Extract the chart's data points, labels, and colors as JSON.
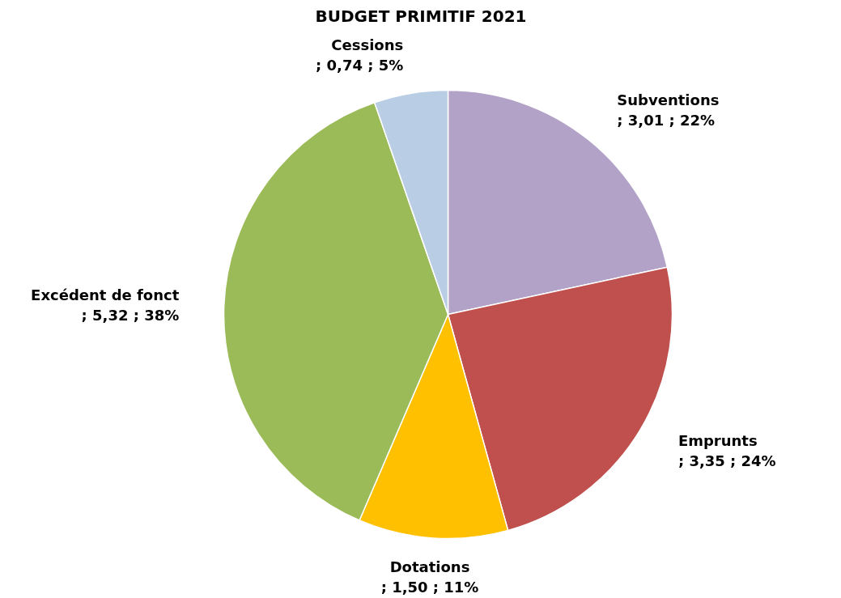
{
  "chart_data": {
    "type": "pie",
    "title": "BUDGET PRIMITIF 2021",
    "categories": [
      "Subventions",
      "Emprunts",
      "Dotations",
      "Excédent de fonct",
      "Cessions"
    ],
    "values": [
      3.01,
      3.35,
      1.5,
      5.32,
      0.74
    ],
    "colors": [
      "#b3a2c7",
      "#c0504d",
      "#ffc000",
      "#9bbb59",
      "#b9cde5"
    ],
    "value_labels": [
      "; 3,01 ; 22%",
      "; 3,35 ; 24%",
      "; 1,50 ; 11%",
      "; 5,32 ; 38%",
      "; 0,74 ; 5%"
    ],
    "legend": false
  }
}
